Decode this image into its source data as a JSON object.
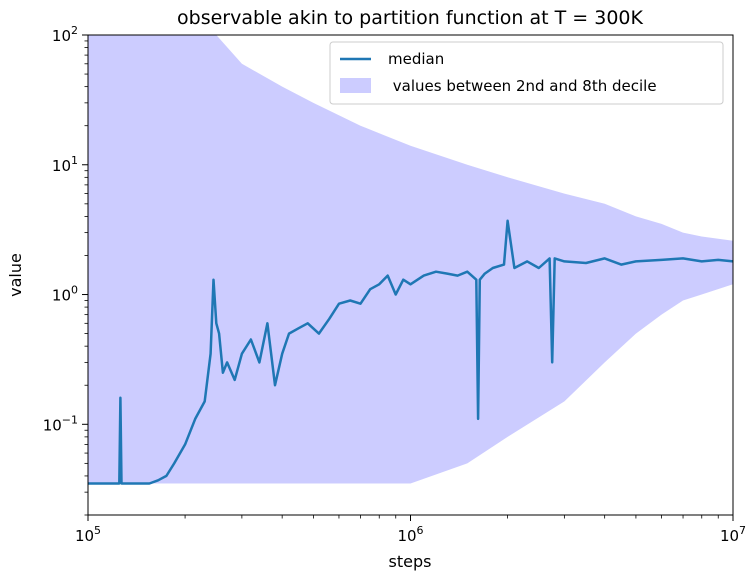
{
  "chart_data": {
    "type": "line",
    "title": "observable akin to partition function at T = 300K",
    "xlabel": "steps",
    "ylabel": "value",
    "xscale": "log",
    "yscale": "log",
    "xlim": [
      100000,
      10000000
    ],
    "ylim": [
      0.02,
      100
    ],
    "xticks": [
      {
        "value": 100000,
        "base": "10",
        "exp": "5"
      },
      {
        "value": 1000000,
        "base": "10",
        "exp": "6"
      },
      {
        "value": 10000000,
        "base": "10",
        "exp": "7"
      }
    ],
    "yticks": [
      {
        "value": 0.1,
        "base": "10",
        "exp": "−1"
      },
      {
        "value": 1,
        "base": "10",
        "exp": "0"
      },
      {
        "value": 10,
        "base": "10",
        "exp": "1"
      },
      {
        "value": 100,
        "base": "10",
        "exp": "2"
      }
    ],
    "grid": false,
    "legend_position": "top-right",
    "series": [
      {
        "name": "median",
        "kind": "line",
        "color": "#1f77b4",
        "x": [
          100000,
          110000,
          120000,
          125000,
          126000,
          127000,
          140000,
          155000,
          165000,
          175000,
          185000,
          200000,
          215000,
          230000,
          240000,
          245000,
          250000,
          255000,
          262000,
          270000,
          285000,
          300000,
          320000,
          340000,
          360000,
          380000,
          400000,
          420000,
          450000,
          480000,
          520000,
          560000,
          600000,
          650000,
          700000,
          750000,
          800000,
          850000,
          900000,
          950000,
          1000000,
          1100000,
          1200000,
          1300000,
          1400000,
          1500000,
          1600000,
          1620000,
          1640000,
          1700000,
          1800000,
          1950000,
          2000000,
          2100000,
          2300000,
          2500000,
          2700000,
          2750000,
          2800000,
          3000000,
          3500000,
          4000000,
          4500000,
          5000000,
          6000000,
          7000000,
          8000000,
          9000000,
          10000000
        ],
        "y": [
          0.035,
          0.035,
          0.035,
          0.035,
          0.16,
          0.035,
          0.035,
          0.035,
          0.037,
          0.04,
          0.05,
          0.07,
          0.11,
          0.15,
          0.35,
          1.3,
          0.6,
          0.5,
          0.25,
          0.3,
          0.22,
          0.35,
          0.45,
          0.3,
          0.6,
          0.2,
          0.35,
          0.5,
          0.55,
          0.6,
          0.5,
          0.65,
          0.85,
          0.9,
          0.85,
          1.1,
          1.2,
          1.4,
          1.0,
          1.3,
          1.2,
          1.4,
          1.5,
          1.45,
          1.4,
          1.5,
          1.3,
          0.11,
          1.3,
          1.45,
          1.6,
          1.7,
          3.7,
          1.6,
          1.8,
          1.6,
          1.9,
          0.3,
          1.9,
          1.8,
          1.75,
          1.9,
          1.7,
          1.8,
          1.85,
          1.9,
          1.8,
          1.85,
          1.8
        ]
      },
      {
        "name": " values between 2nd and 8th decile",
        "kind": "band",
        "color": "#ccccff",
        "x": [
          100000,
          120000,
          140000,
          160000,
          180000,
          200000,
          250000,
          300000,
          400000,
          500000,
          700000,
          1000000,
          1500000,
          2000000,
          3000000,
          4000000,
          5000000,
          6000000,
          7000000,
          8000000,
          10000000
        ],
        "lower": [
          0.035,
          0.035,
          0.035,
          0.035,
          0.035,
          0.035,
          0.035,
          0.035,
          0.035,
          0.035,
          0.035,
          0.035,
          0.05,
          0.08,
          0.15,
          0.3,
          0.5,
          0.7,
          0.9,
          1.0,
          1.2
        ],
        "upper": [
          100,
          100,
          100,
          100,
          100,
          100,
          100,
          60,
          40,
          30,
          20,
          14,
          10,
          8,
          6,
          5,
          4,
          3.5,
          3,
          2.8,
          2.6
        ]
      }
    ]
  }
}
